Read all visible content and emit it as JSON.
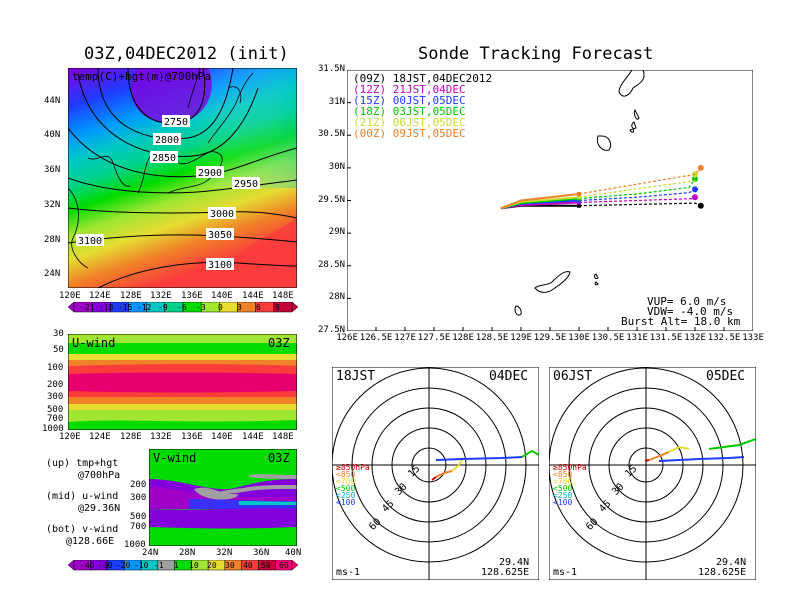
{
  "left_title": "03Z,04DEC2012 (init)",
  "right_title": "Sonde Tracking Forecast",
  "map_panel": {
    "label": "temp(C)+hgt(m)@700hPa",
    "lat_ticks": [
      "44N",
      "40N",
      "36N",
      "32N",
      "28N",
      "24N"
    ],
    "lon_ticks": [
      "120E",
      "124E",
      "128E",
      "132E",
      "136E",
      "140E",
      "144E",
      "148E"
    ],
    "contours": [
      "2750",
      "2800",
      "2850",
      "2900",
      "2950",
      "3000",
      "3050",
      "3100",
      "3100"
    ]
  },
  "temp_colorbar": {
    "labels": [
      "-21",
      "-18",
      "-15",
      "-12",
      "-9",
      "-6",
      "-3",
      "0",
      "3",
      "6",
      "9"
    ],
    "colors": [
      "#a000c8",
      "#8200dc",
      "#1e3cff",
      "#0096ff",
      "#00c8c8",
      "#00d28c",
      "#00dc00",
      "#a0e632",
      "#e6dc32",
      "#f08228",
      "#fa3c3c",
      "#c8003c"
    ]
  },
  "u_wind_panel": {
    "label": "U-wind",
    "time": "03Z",
    "p_ticks": [
      "30",
      "50",
      "100",
      "200",
      "300",
      "500",
      "700",
      "1000"
    ],
    "lon_ticks": [
      "120E",
      "124E",
      "128E",
      "132E",
      "136E",
      "140E",
      "144E",
      "148E"
    ]
  },
  "v_wind_panel": {
    "label": "V-wind",
    "time": "03Z",
    "p_ticks": [
      "200",
      "300",
      "500",
      "700",
      "1000"
    ],
    "lat_ticks": [
      "24N",
      "28N",
      "32N",
      "36N",
      "40N"
    ]
  },
  "side_labels": [
    {
      "a": "(up) tmp+hgt",
      "b": "@700hPa"
    },
    {
      "a": "(mid) u-wind",
      "b": "@29.36N"
    },
    {
      "a": "(bot) v-wind",
      "b": "@128.66E"
    }
  ],
  "wind_colorbar": {
    "labels": [
      "-40",
      "-30",
      "-20",
      "-10",
      "-1",
      "1",
      "10",
      "20",
      "30",
      "40",
      "50",
      "60"
    ],
    "colors": [
      "#a000c8",
      "#8200dc",
      "#1e3cff",
      "#0096ff",
      "#00c8c8",
      "#a0a0a0",
      "#00dc00",
      "#a0e632",
      "#e6dc32",
      "#f08228",
      "#fa3c3c",
      "#c8003c",
      "#ff0078"
    ]
  },
  "track_panel": {
    "lat_ticks": [
      "31.5N",
      "31N",
      "30.5N",
      "30N",
      "29.5N",
      "29N",
      "28.5N",
      "28N",
      "27.5N"
    ],
    "lon_ticks": [
      "126E",
      "126.5E",
      "127E",
      "127.5E",
      "128E",
      "128.5E",
      "129E",
      "129.5E",
      "130E",
      "130.5E",
      "131E",
      "131.5E",
      "132E",
      "132.5E",
      "133E"
    ],
    "legend": [
      {
        "code": "(09Z)",
        "time": "18JST,04DEC2012",
        "color": "#000000"
      },
      {
        "code": "(12Z)",
        "time": "21JST,04DEC",
        "color": "#c800c8"
      },
      {
        "code": "(15Z)",
        "time": "00JST,05DEC",
        "color": "#1e3cff"
      },
      {
        "code": "(18Z)",
        "time": "03JST,05DEC",
        "color": "#00c800"
      },
      {
        "code": "(21Z)",
        "time": "06JST,05DEC",
        "color": "#c8dc32"
      },
      {
        "code": "(00Z)",
        "time": "09JST,05DEC",
        "color": "#f08228"
      }
    ],
    "params": [
      "VUP= 6.0 m/s",
      "VDW= -4.0 m/s",
      "Burst Alt= 18.0 km"
    ]
  },
  "hodo_left": {
    "time": "18JST",
    "date": "04DEC",
    "lat": "29.4N",
    "lon": "128.625E",
    "unit": "ms-1"
  },
  "hodo_right": {
    "time": "06JST",
    "date": "05DEC",
    "lat": "29.4N",
    "lon": "128.625E",
    "unit": "ms-1"
  },
  "hodo_rings": [
    "15",
    "30",
    "45",
    "60"
  ],
  "hodo_legend": [
    {
      "text": "≥850hPa",
      "color": "#c80000"
    },
    {
      "text": "<850",
      "color": "#f08228"
    },
    {
      "text": "<700",
      "color": "#e6dc32"
    },
    {
      "text": "<500",
      "color": "#00c800"
    },
    {
      "text": "<250",
      "color": "#00b4dc"
    },
    {
      "text": "<100",
      "color": "#1e3cff"
    }
  ],
  "chart_data": [
    {
      "type": "heatmap",
      "title": "03Z,04DEC2012 (init)",
      "variable": "temp(C)+hgt(m)@700hPa",
      "xlim": [
        120,
        150
      ],
      "ylim": [
        22,
        48
      ],
      "height_contours_m": [
        2750,
        2800,
        2850,
        2900,
        2950,
        3000,
        3050,
        3100
      ],
      "temp_levels_c": [
        -21,
        -18,
        -15,
        -12,
        -9,
        -6,
        -3,
        0,
        3,
        6,
        9
      ]
    },
    {
      "type": "heatmap",
      "variable": "U-wind",
      "time": "03Z",
      "y_pressure_hpa": [
        30,
        50,
        100,
        200,
        300,
        500,
        700,
        1000
      ],
      "xlim": [
        120,
        150
      ]
    },
    {
      "type": "heatmap",
      "variable": "V-wind",
      "time": "03Z",
      "y_pressure_hpa": [
        200,
        300,
        500,
        700,
        1000
      ],
      "xlim": [
        24,
        40
      ]
    },
    {
      "type": "line",
      "title": "Sonde Tracking Forecast",
      "xlim": [
        126,
        133
      ],
      "ylim": [
        27.5,
        31.5
      ],
      "series": [
        {
          "name": "(09Z) 18JST,04DEC2012",
          "x": [
            128.65,
            129.0,
            130.0,
            131.0,
            132.0,
            132.1
          ],
          "y": [
            29.38,
            29.42,
            29.42,
            29.44,
            29.46,
            29.42
          ]
        },
        {
          "name": "(12Z) 21JST,04DEC",
          "x": [
            128.65,
            129.0,
            130.0,
            131.0,
            132.0,
            132.0
          ],
          "y": [
            29.38,
            29.43,
            29.47,
            29.5,
            29.53,
            29.55
          ]
        },
        {
          "name": "(15Z) 00JST,05DEC",
          "x": [
            128.65,
            129.0,
            130.0,
            131.0,
            131.9,
            132.0
          ],
          "y": [
            29.38,
            29.45,
            29.5,
            29.55,
            29.62,
            29.67
          ]
        },
        {
          "name": "(18Z) 03JST,05DEC",
          "x": [
            128.65,
            129.0,
            130.0,
            131.0,
            131.9,
            132.0
          ],
          "y": [
            29.38,
            29.46,
            29.53,
            29.6,
            29.7,
            29.83
          ]
        },
        {
          "name": "(21Z) 06JST,05DEC",
          "x": [
            128.65,
            129.0,
            130.0,
            131.0,
            132.0,
            132.0
          ],
          "y": [
            29.38,
            29.48,
            29.55,
            29.68,
            29.8,
            29.9
          ]
        },
        {
          "name": "(00Z) 09JST,05DEC",
          "x": [
            128.65,
            129.0,
            130.0,
            131.0,
            132.0,
            132.1
          ],
          "y": [
            29.38,
            29.5,
            29.6,
            29.75,
            29.9,
            30.0
          ]
        }
      ]
    }
  ]
}
